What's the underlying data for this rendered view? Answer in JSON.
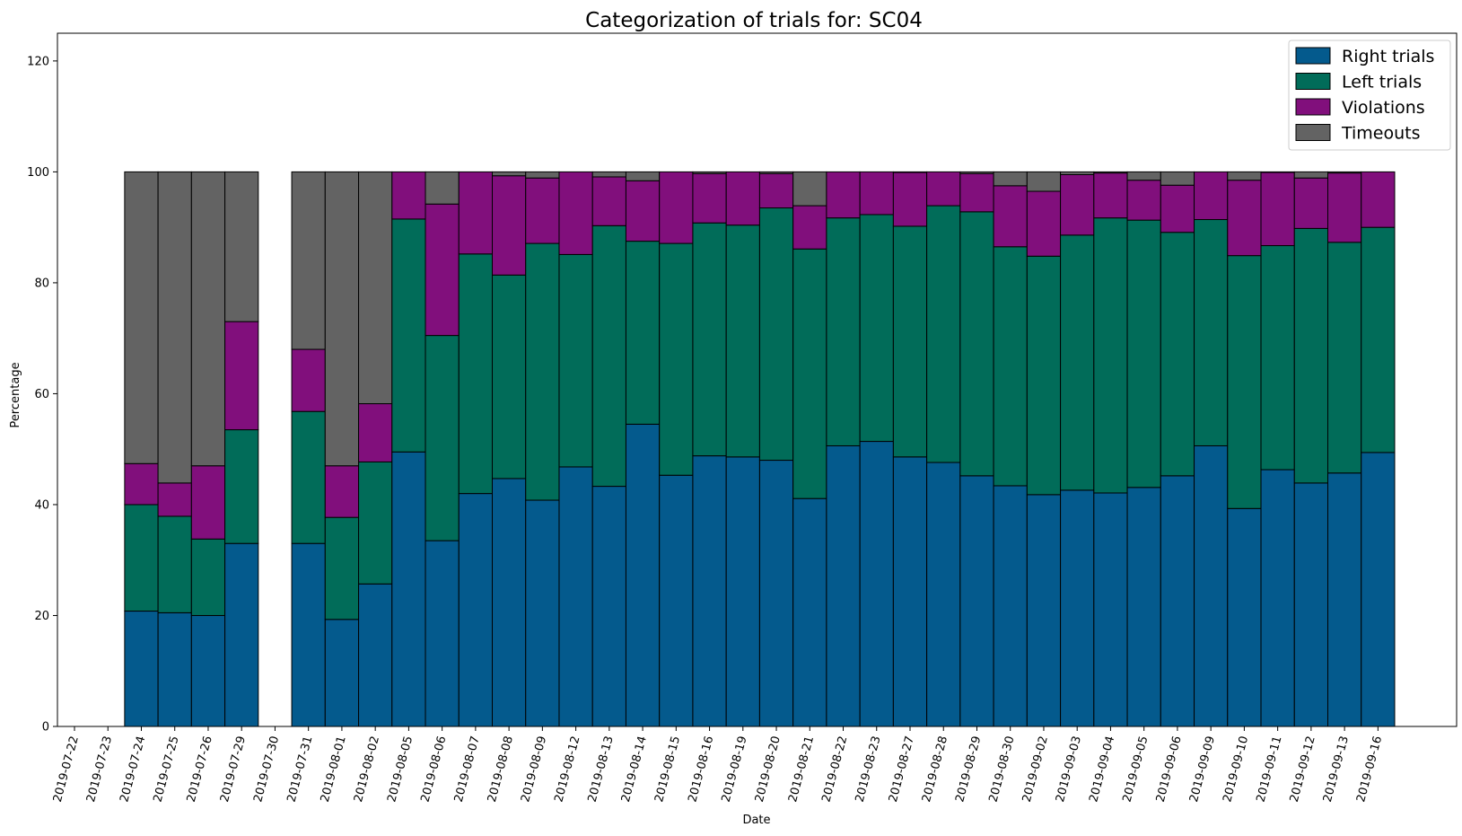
{
  "chart_data": {
    "type": "bar",
    "stacked": true,
    "title": "Categorization of trials for: SC04",
    "xlabel": "Date",
    "ylabel": "Percentage",
    "ylim": [
      0,
      125
    ],
    "yticks": [
      0,
      20,
      40,
      60,
      80,
      100,
      120
    ],
    "grid": false,
    "legend_position": "top-right",
    "categories": [
      "2019-07-22",
      "2019-07-23",
      "2019-07-24",
      "2019-07-25",
      "2019-07-26",
      "2019-07-29",
      "2019-07-30",
      "2019-07-31",
      "2019-08-01",
      "2019-08-02",
      "2019-08-05",
      "2019-08-06",
      "2019-08-07",
      "2019-08-08",
      "2019-08-09",
      "2019-08-12",
      "2019-08-13",
      "2019-08-14",
      "2019-08-15",
      "2019-08-16",
      "2019-08-19",
      "2019-08-20",
      "2019-08-21",
      "2019-08-22",
      "2019-08-23",
      "2019-08-27",
      "2019-08-28",
      "2019-08-29",
      "2019-08-30",
      "2019-09-02",
      "2019-09-03",
      "2019-09-04",
      "2019-09-05",
      "2019-09-06",
      "2019-09-09",
      "2019-09-10",
      "2019-09-11",
      "2019-09-12",
      "2019-09-13",
      "2019-09-16"
    ],
    "series": [
      {
        "name": "Right trials",
        "color": "#045a8d",
        "values": [
          0,
          0,
          20.8,
          20.5,
          20.0,
          33.0,
          0,
          33.0,
          19.3,
          25.7,
          49.5,
          33.5,
          42.0,
          44.7,
          40.8,
          46.8,
          43.3,
          54.5,
          45.3,
          48.8,
          48.6,
          48.0,
          41.1,
          50.6,
          51.4,
          48.6,
          47.6,
          45.2,
          43.4,
          41.8,
          42.6,
          42.1,
          43.1,
          45.2,
          50.6,
          39.3,
          46.3,
          43.9,
          45.7,
          49.4
        ]
      },
      {
        "name": "Left trials",
        "color": "#016c59",
        "values": [
          0,
          0,
          19.2,
          17.4,
          13.8,
          20.5,
          0,
          23.8,
          18.4,
          22.0,
          42.0,
          37.0,
          43.2,
          36.7,
          46.3,
          38.3,
          47.0,
          33.0,
          41.8,
          42.0,
          41.8,
          45.5,
          45.0,
          41.1,
          40.9,
          41.6,
          46.3,
          47.6,
          43.1,
          43.0,
          46.0,
          49.6,
          48.2,
          43.9,
          40.8,
          45.6,
          40.4,
          45.9,
          41.6,
          40.6
        ]
      },
      {
        "name": "Violations",
        "color": "#810f7c",
        "values": [
          0,
          0,
          7.4,
          6.0,
          13.2,
          19.5,
          0,
          11.2,
          9.3,
          10.5,
          8.5,
          23.7,
          14.8,
          17.9,
          11.8,
          14.9,
          8.8,
          10.9,
          12.9,
          8.9,
          9.6,
          6.2,
          7.8,
          8.3,
          7.7,
          9.7,
          6.1,
          6.9,
          11.0,
          11.7,
          10.9,
          8.1,
          7.2,
          8.5,
          8.6,
          13.6,
          13.2,
          9.1,
          12.5,
          10.0
        ]
      },
      {
        "name": "Timeouts",
        "color": "#636363",
        "values": [
          0,
          0,
          52.6,
          56.1,
          53.0,
          27.0,
          0,
          32.0,
          53.0,
          41.8,
          0,
          5.8,
          0,
          0.7,
          1.1,
          0,
          0.9,
          1.6,
          0,
          0.3,
          0,
          0.3,
          6.1,
          0,
          0,
          0.1,
          0,
          0.3,
          2.5,
          3.5,
          0.5,
          0.2,
          1.5,
          2.4,
          0,
          1.5,
          0.1,
          1.1,
          0.2,
          0
        ]
      }
    ]
  }
}
